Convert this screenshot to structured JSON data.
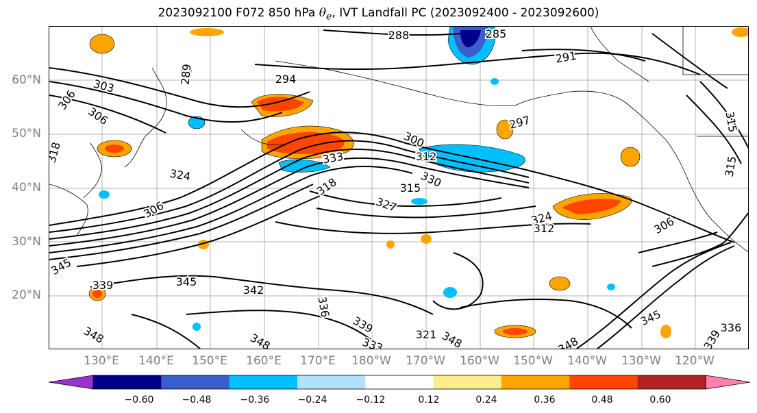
{
  "title": {
    "prefix": "2023092100 F072 850 hPa",
    "symbol": "θ",
    "subscript": "e",
    "suffix": ", IVT Landfall PC (2023092400 - 2023092600)"
  },
  "map": {
    "lat_labels": [
      "60°N",
      "50°N",
      "40°N",
      "30°N",
      "20°N"
    ],
    "lon_labels": [
      "130°E",
      "140°E",
      "150°E",
      "160°E",
      "170°E",
      "180°W",
      "170°W",
      "160°W",
      "150°W",
      "140°W",
      "130°W",
      "120°W"
    ],
    "contour_labels": [
      "288",
      "285",
      "291",
      "294",
      "289",
      "303",
      "306",
      "306",
      "297",
      "300",
      "312",
      "333",
      "318",
      "324",
      "330",
      "327",
      "315",
      "306",
      "318",
      "324",
      "312",
      "306",
      "345",
      "339",
      "345",
      "342",
      "336",
      "339",
      "333",
      "345",
      "348",
      "348",
      "348",
      "336",
      "339",
      "348",
      "321",
      "315",
      "315"
    ]
  },
  "colorbar": {
    "colors": [
      "#9a32cd",
      "#00008b",
      "#3a5fcd",
      "#00bfff",
      "#b0e2ff",
      "#ffffff",
      "#ffec8b",
      "#ffa500",
      "#ff4500",
      "#b22222",
      "#ff82ab"
    ],
    "ticks": [
      "−0.60",
      "−0.48",
      "−0.36",
      "−0.24",
      "−0.12",
      "0.12",
      "0.24",
      "0.36",
      "0.48",
      "0.60"
    ]
  }
}
